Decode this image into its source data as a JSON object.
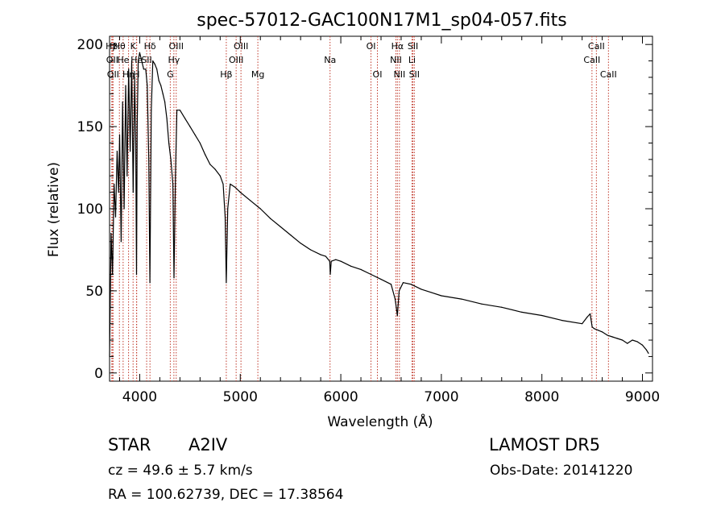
{
  "chart_data": {
    "type": "line",
    "title": "spec-57012-GAC100N17M1_sp04-057.fits",
    "xlabel": "Wavelength (Å)",
    "ylabel": "Flux (relative)",
    "xlim": [
      3700,
      9100
    ],
    "ylim": [
      -5,
      205
    ],
    "xticks": [
      4000,
      5000,
      6000,
      7000,
      8000,
      9000
    ],
    "yticks": [
      0,
      50,
      100,
      150,
      200
    ],
    "grid": false,
    "series": [
      {
        "x": [
          3700,
          3715,
          3730,
          3745,
          3760,
          3775,
          3790,
          3800,
          3815,
          3830,
          3845,
          3860,
          3875,
          3890,
          3905,
          3920,
          3935,
          3950,
          3960,
          3968,
          3975,
          3985,
          4000,
          4020,
          4040,
          4060,
          4075,
          4090,
          4101,
          4115,
          4130,
          4150,
          4170,
          4190,
          4210,
          4230,
          4250,
          4270,
          4290,
          4310,
          4330,
          4341,
          4355,
          4370,
          4400,
          4450,
          4500,
          4550,
          4600,
          4650,
          4700,
          4750,
          4800,
          4830,
          4850,
          4861,
          4875,
          4900,
          4950,
          5000,
          5100,
          5200,
          5300,
          5400,
          5500,
          5600,
          5700,
          5800,
          5850,
          5890,
          5895,
          5905,
          5950,
          6000,
          6100,
          6200,
          6300,
          6400,
          6500,
          6540,
          6563,
          6580,
          6620,
          6700,
          6800,
          6900,
          7000,
          7200,
          7400,
          7600,
          7800,
          8000,
          8200,
          8400,
          8450,
          8480,
          8500,
          8520,
          8560,
          8600,
          8650,
          8700,
          8750,
          8800,
          8850,
          8900,
          8950,
          9000,
          9040,
          9060
        ],
        "values": [
          10,
          85,
          60,
          115,
          95,
          135,
          110,
          145,
          80,
          165,
          100,
          175,
          120,
          185,
          135,
          190,
          110,
          180,
          140,
          60,
          150,
          190,
          195,
          190,
          185,
          185,
          175,
          130,
          55,
          160,
          190,
          188,
          185,
          178,
          175,
          170,
          165,
          155,
          140,
          130,
          115,
          58,
          120,
          160,
          160,
          155,
          150,
          145,
          140,
          133,
          127,
          124,
          120,
          115,
          95,
          55,
          100,
          115,
          113,
          110,
          105,
          100,
          94,
          89,
          84,
          79,
          75,
          72,
          71,
          68,
          60,
          68,
          69,
          68,
          65,
          63,
          60,
          57,
          54,
          45,
          35,
          50,
          55,
          54,
          51,
          49,
          47,
          45,
          42,
          40,
          37,
          35,
          32,
          30,
          34,
          36,
          28,
          27,
          26,
          25,
          23,
          22,
          21,
          20,
          18,
          20,
          19,
          17,
          14,
          12
        ]
      }
    ],
    "annotations": [
      {
        "x": 3722,
        "row": 1,
        "text": "Hβ"
      },
      {
        "x": 3727,
        "row": 2,
        "text": "OII"
      },
      {
        "x": 3735,
        "row": 3,
        "text": "OII"
      },
      {
        "x": 3798,
        "row": 1,
        "text": "Hθ"
      },
      {
        "x": 3835,
        "row": 2,
        "text": "He"
      },
      {
        "x": 3889,
        "row": 3,
        "text": "Hη"
      },
      {
        "x": 3934,
        "row": 1,
        "text": "K"
      },
      {
        "x": 3970,
        "row": 2,
        "text": "He"
      },
      {
        "x": 3968,
        "row": 3,
        "text": "H"
      },
      {
        "x": 4102,
        "row": 1,
        "text": "Hδ"
      },
      {
        "x": 4069,
        "row": 2,
        "text": "SII"
      },
      {
        "x": 4363,
        "row": 1,
        "text": "OIII"
      },
      {
        "x": 4340,
        "row": 2,
        "text": "Hγ"
      },
      {
        "x": 4304,
        "row": 3,
        "text": "G"
      },
      {
        "x": 4861,
        "row": 3,
        "text": "Hβ"
      },
      {
        "x": 4959,
        "row": 2,
        "text": "OIII"
      },
      {
        "x": 5007,
        "row": 1,
        "text": "OIII"
      },
      {
        "x": 5175,
        "row": 3,
        "text": "Mg"
      },
      {
        "x": 5893,
        "row": 2,
        "text": "Na"
      },
      {
        "x": 6300,
        "row": 1,
        "text": "OI"
      },
      {
        "x": 6364,
        "row": 3,
        "text": "OI"
      },
      {
        "x": 6548,
        "row": 2,
        "text": "NII"
      },
      {
        "x": 6563,
        "row": 1,
        "text": "Hα"
      },
      {
        "x": 6583,
        "row": 3,
        "text": "NII"
      },
      {
        "x": 6708,
        "row": 2,
        "text": "Li"
      },
      {
        "x": 6717,
        "row": 1,
        "text": "SII"
      },
      {
        "x": 6731,
        "row": 3,
        "text": "SII"
      },
      {
        "x": 8498,
        "row": 2,
        "text": "CaII"
      },
      {
        "x": 8542,
        "row": 1,
        "text": "CaII"
      },
      {
        "x": 8662,
        "row": 3,
        "text": "CaII"
      }
    ]
  },
  "info": {
    "object_type": "STAR",
    "subclass": "A2IV",
    "survey": "LAMOST  DR5",
    "redshift_line": "cz = 49.6 ± 5.7 km/s",
    "obs_date": "Obs-Date: 20141220",
    "coords": "RA = 100.62739, DEC =  17.38564"
  }
}
